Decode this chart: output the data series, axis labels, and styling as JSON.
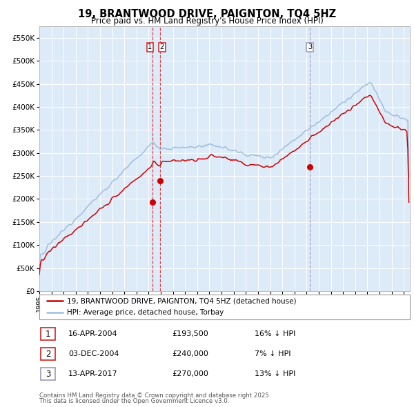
{
  "title": "19, BRANTWOOD DRIVE, PAIGNTON, TQ4 5HZ",
  "subtitle": "Price paid vs. HM Land Registry's House Price Index (HPI)",
  "xlim": [
    1995.0,
    2025.5
  ],
  "ylim": [
    0,
    575000
  ],
  "yticks": [
    0,
    50000,
    100000,
    150000,
    200000,
    250000,
    300000,
    350000,
    400000,
    450000,
    500000,
    550000
  ],
  "ytick_labels": [
    "£0",
    "£50K",
    "£100K",
    "£150K",
    "£200K",
    "£250K",
    "£300K",
    "£350K",
    "£400K",
    "£450K",
    "£500K",
    "£550K"
  ],
  "xtick_years": [
    1995,
    1996,
    1997,
    1998,
    1999,
    2000,
    2001,
    2002,
    2003,
    2004,
    2005,
    2006,
    2007,
    2008,
    2009,
    2010,
    2011,
    2012,
    2013,
    2014,
    2015,
    2016,
    2017,
    2018,
    2019,
    2020,
    2021,
    2022,
    2023,
    2024,
    2025
  ],
  "hpi_color": "#a0bedd",
  "price_color": "#cc0000",
  "bg_color": "#ddeaf8",
  "grid_color": "#ffffff",
  "sale1_x": 2004.29,
  "sale1_y": 193500,
  "sale2_x": 2004.92,
  "sale2_y": 240000,
  "sale3_x": 2017.28,
  "sale3_y": 270000,
  "sale1_date": "16-APR-2004",
  "sale1_price": "£193,500",
  "sale1_hpi_pct": "16% ↓ HPI",
  "sale2_date": "03-DEC-2004",
  "sale2_price": "£240,000",
  "sale2_hpi_pct": "7% ↓ HPI",
  "sale3_date": "13-APR-2017",
  "sale3_price": "£270,000",
  "sale3_hpi_pct": "13% ↓ HPI",
  "legend_line1": "19, BRANTWOOD DRIVE, PAIGNTON, TQ4 5HZ (detached house)",
  "legend_line2": "HPI: Average price, detached house, Torbay",
  "footnote1": "Contains HM Land Registry data © Crown copyright and database right 2025.",
  "footnote2": "This data is licensed under the Open Government Licence v3.0."
}
